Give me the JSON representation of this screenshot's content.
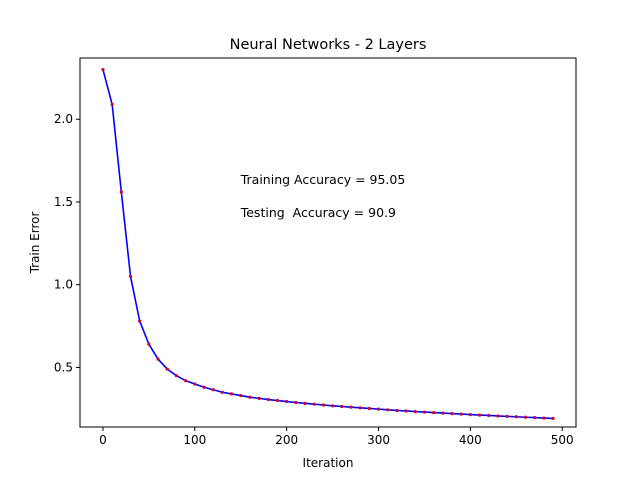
{
  "chart_data": {
    "type": "line",
    "title": "Neural Networks - 2 Layers",
    "xlabel": "Iteration",
    "ylabel": "Train Error",
    "xlim": [
      -25,
      515
    ],
    "ylim": [
      0.14,
      2.37
    ],
    "xticks": [
      0,
      100,
      200,
      300,
      400,
      500
    ],
    "yticks": [
      0.5,
      1.0,
      1.5,
      2.0
    ],
    "ytick_labels": [
      "0.5",
      "1.0",
      "1.5",
      "2.0"
    ],
    "grid": false,
    "colors": {
      "line": "#0000ff",
      "markers": "#cc0033"
    },
    "annotations": [
      {
        "text": "Training Accuracy = 95.05",
        "x": 150,
        "y": 1.61
      },
      {
        "text": "Testing  Accuracy = 90.9",
        "x": 150,
        "y": 1.41
      }
    ],
    "series": [
      {
        "x": [
          0,
          10,
          20,
          30,
          40,
          50,
          60,
          70,
          80,
          90,
          100,
          110,
          120,
          130,
          140,
          150,
          160,
          170,
          180,
          190,
          200,
          210,
          220,
          230,
          240,
          250,
          260,
          270,
          280,
          290,
          300,
          310,
          320,
          330,
          340,
          350,
          360,
          370,
          380,
          390,
          400,
          410,
          420,
          430,
          440,
          450,
          460,
          470,
          480,
          490
        ],
        "y": [
          2.3,
          2.09,
          1.56,
          1.05,
          0.78,
          0.64,
          0.55,
          0.49,
          0.45,
          0.42,
          0.4,
          0.38,
          0.365,
          0.35,
          0.34,
          0.33,
          0.32,
          0.313,
          0.306,
          0.3,
          0.294,
          0.288,
          0.283,
          0.278,
          0.273,
          0.268,
          0.264,
          0.26,
          0.256,
          0.252,
          0.248,
          0.244,
          0.24,
          0.237,
          0.233,
          0.23,
          0.227,
          0.224,
          0.221,
          0.218,
          0.215,
          0.212,
          0.21,
          0.207,
          0.204,
          0.202,
          0.199,
          0.197,
          0.194,
          0.192
        ]
      }
    ]
  }
}
